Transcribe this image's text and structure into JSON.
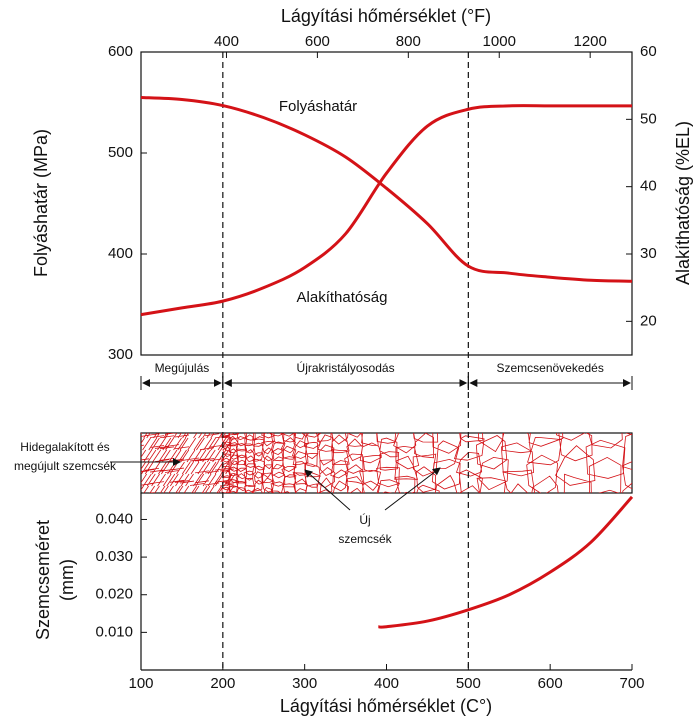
{
  "chart_data": [
    {
      "type": "line",
      "x2_label": "Lágyítási hőmérséklet (°F)",
      "ylabel": "Folyáshatár (MPa)",
      "y2label": "Alakíthatóság (%EL)",
      "xlim": [
        100,
        700
      ],
      "x2lim": [
        212,
        1292
      ],
      "x2ticks": [
        400,
        600,
        800,
        1000,
        1200
      ],
      "ylim": [
        300,
        600
      ],
      "yticks": [
        300,
        400,
        500,
        600
      ],
      "y2lim": [
        15,
        60
      ],
      "y2ticks": [
        20,
        30,
        40,
        50,
        60
      ],
      "x": [
        100,
        150,
        200,
        250,
        300,
        350,
        400,
        450,
        500,
        550,
        600,
        650,
        700
      ],
      "series": [
        {
          "name": "Folyáshatár",
          "color": "#d41217",
          "values": [
            555,
            553,
            547,
            535,
            518,
            496,
            465,
            430,
            388,
            381,
            377,
            374,
            373
          ]
        },
        {
          "name": "Alakíthatóság",
          "color": "#d41217",
          "axis": "y2",
          "values": [
            21,
            22,
            23,
            25,
            28,
            33,
            42,
            49,
            51.5,
            52,
            52,
            52,
            52
          ]
        }
      ],
      "regions": [
        {
          "label": "Megújulás",
          "from": 100,
          "to": 200
        },
        {
          "label": "Újrakristályosodás",
          "from": 200,
          "to": 500
        },
        {
          "label": "Szemcsenövekedés",
          "from": 500,
          "to": 700
        }
      ],
      "annotations": [
        {
          "lines": [
            "Hidegalakított és",
            "megújult szemcsék"
          ]
        },
        {
          "lines": [
            "Új",
            "szemcsék"
          ]
        }
      ]
    },
    {
      "type": "line",
      "xlabel": "Lágyítási hőmérséklet (C°)",
      "ylabel": [
        "Szemcseméret",
        "(mm)"
      ],
      "xlim": [
        100,
        700
      ],
      "xticks": [
        100,
        200,
        300,
        400,
        500,
        600,
        700
      ],
      "ylim": [
        0,
        0.0465
      ],
      "yticks": [
        {
          "value": 0.01,
          "label": "0.010"
        },
        {
          "value": 0.02,
          "label": "0.020"
        },
        {
          "value": 0.03,
          "label": "0.030"
        },
        {
          "value": 0.04,
          "label": "0.040"
        }
      ],
      "x": [
        390,
        400,
        450,
        500,
        550,
        600,
        650,
        700
      ],
      "series": [
        {
          "name": "Szemcseméret",
          "color": "#d41217",
          "values": [
            0.0115,
            0.0115,
            0.013,
            0.016,
            0.02,
            0.026,
            0.034,
            0.046
          ]
        }
      ]
    }
  ]
}
